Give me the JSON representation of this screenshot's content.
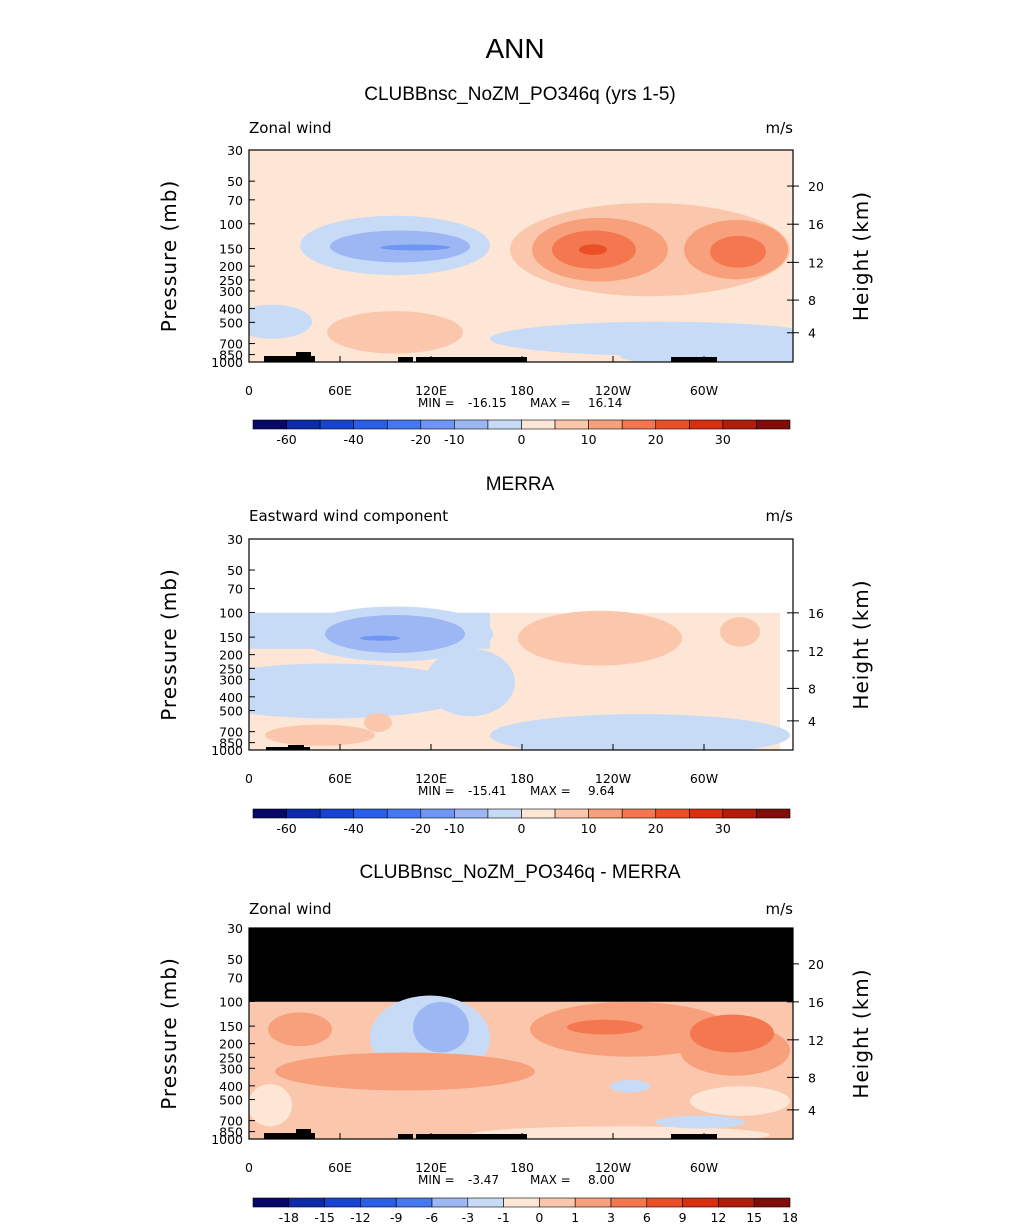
{
  "main_title": "ANN",
  "chart_data": [
    {
      "type": "heatmap",
      "title": "CLUBBnsc_NoZM_PO346q (yrs 1-5)",
      "left_label": "Zonal wind",
      "right_label": "m/s",
      "ylabel": "Pressure (mb)",
      "ylabel_right": "Height (km)",
      "x_ticks": [
        "0",
        "60E",
        "120E",
        "180",
        "120W",
        "60W"
      ],
      "y_ticks": [
        "30",
        "50",
        "70",
        "100",
        "150",
        "200",
        "250",
        "300",
        "400",
        "500",
        "700",
        "850",
        "1000"
      ],
      "height_ticks": [
        "20",
        "16",
        "12",
        "8",
        "4"
      ],
      "min_label": "MIN =",
      "min_value": "-16.15",
      "max_label": "MAX =",
      "max_value": "16.14",
      "colorbar_labels": [
        "-60",
        "-40",
        "-20",
        "-10",
        "0",
        "10",
        "20",
        "30"
      ]
    },
    {
      "type": "heatmap",
      "title": "MERRA",
      "left_label": "Eastward wind component",
      "right_label": "m/s",
      "ylabel": "Pressure (mb)",
      "ylabel_right": "Height (km)",
      "x_ticks": [
        "0",
        "60E",
        "120E",
        "180",
        "120W",
        "60W"
      ],
      "y_ticks": [
        "30",
        "50",
        "70",
        "100",
        "150",
        "200",
        "250",
        "300",
        "400",
        "500",
        "700",
        "850",
        "1000"
      ],
      "height_ticks": [
        "16",
        "12",
        "8",
        "4"
      ],
      "min_label": "MIN =",
      "min_value": "-15.41",
      "max_label": "MAX =",
      "max_value": "9.64",
      "colorbar_labels": [
        "-60",
        "-40",
        "-20",
        "-10",
        "0",
        "10",
        "20",
        "30"
      ]
    },
    {
      "type": "heatmap",
      "title": "CLUBBnsc_NoZM_PO346q - MERRA",
      "left_label": "Zonal wind",
      "right_label": "m/s",
      "ylabel": "Pressure (mb)",
      "ylabel_right": "Height (km)",
      "x_ticks": [
        "0",
        "60E",
        "120E",
        "180",
        "120W",
        "60W"
      ],
      "y_ticks": [
        "30",
        "50",
        "70",
        "100",
        "150",
        "200",
        "250",
        "300",
        "400",
        "500",
        "700",
        "850",
        "1000"
      ],
      "height_ticks": [
        "20",
        "16",
        "12",
        "8",
        "4"
      ],
      "min_label": "MIN =",
      "min_value": "-3.47",
      "max_label": "MAX =",
      "max_value": "8.00",
      "colorbar_labels": [
        "-18",
        "-15",
        "-12",
        "-9",
        "-6",
        "-3",
        "-1",
        "0",
        "1",
        "3",
        "6",
        "9",
        "12",
        "15",
        "18"
      ]
    }
  ],
  "colors": {
    "scale": [
      "#08086b",
      "#0d2ba8",
      "#1743d1",
      "#2a5ee8",
      "#4679f0",
      "#6e96f2",
      "#9db7f4",
      "#c8dbf6",
      "#fde6d6",
      "#fbc7ac",
      "#f8a07c",
      "#f4774f",
      "#ea4f28",
      "#d92f10",
      "#b21c0a",
      "#800d08"
    ],
    "diff_scale": [
      "#08086b",
      "#0d2ba8",
      "#1743d1",
      "#2a5ee8",
      "#4679f0",
      "#9db7f4",
      "#c8dbf6",
      "#fde6d6",
      "#fbc7ac",
      "#f8a07c",
      "#f4774f",
      "#ea4f28",
      "#d92f10",
      "#b21c0a",
      "#800d08"
    ]
  }
}
